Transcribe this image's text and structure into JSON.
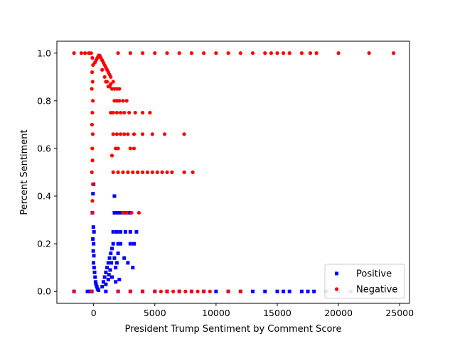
{
  "chart_data": {
    "type": "scatter",
    "title": "",
    "xlabel": "President Trump Sentiment by Comment Score",
    "ylabel": "Percent Sentiment",
    "xlim": [
      -3000,
      25800
    ],
    "ylim": [
      -0.05,
      1.05
    ],
    "x_ticks": [
      0,
      5000,
      10000,
      15000,
      20000,
      25000
    ],
    "x_tick_labels": [
      "0",
      "5000",
      "10000",
      "15000",
      "20000",
      "25000"
    ],
    "y_ticks": [
      0.0,
      0.2,
      0.4,
      0.6,
      0.8,
      1.0
    ],
    "y_tick_labels": [
      "0.0",
      "0.2",
      "0.4",
      "0.6",
      "0.8",
      "1.0"
    ],
    "grid": false,
    "legend": {
      "position": "lower-right",
      "entries": [
        "Positive",
        "Negative"
      ]
    },
    "colors": {
      "positive": "#0000ff",
      "negative": "#ff0000"
    },
    "series": [
      {
        "name": "Positive",
        "marker": "square",
        "color": "#0000ff",
        "points": [
          [
            -1600,
            0.0
          ],
          [
            -500,
            0.0
          ],
          [
            -300,
            0.0
          ],
          [
            -150,
            0.0
          ],
          [
            0,
            0.45
          ],
          [
            -50,
            0.41
          ],
          [
            -100,
            0.33
          ],
          [
            -20,
            0.27
          ],
          [
            30,
            0.25
          ],
          [
            -60,
            0.22
          ],
          [
            0,
            0.2
          ],
          [
            -30,
            0.17
          ],
          [
            20,
            0.15
          ],
          [
            -10,
            0.12
          ],
          [
            40,
            0.1
          ],
          [
            80,
            0.08
          ],
          [
            120,
            0.06
          ],
          [
            160,
            0.04
          ],
          [
            200,
            0.03
          ],
          [
            260,
            0.02
          ],
          [
            320,
            0.01
          ],
          [
            400,
            0.005
          ],
          [
            700,
            0.02
          ],
          [
            800,
            0.04
          ],
          [
            900,
            0.06
          ],
          [
            1000,
            0.08
          ],
          [
            1100,
            0.1
          ],
          [
            1200,
            0.12
          ],
          [
            1300,
            0.14
          ],
          [
            1400,
            0.16
          ],
          [
            1500,
            0.18
          ],
          [
            1600,
            0.2
          ],
          [
            1450,
            0.12
          ],
          [
            1350,
            0.09
          ],
          [
            1250,
            0.07
          ],
          [
            1700,
            0.14
          ],
          [
            1800,
            0.1
          ],
          [
            1900,
            0.12
          ],
          [
            2000,
            0.2
          ],
          [
            2200,
            0.2
          ],
          [
            1200,
            0.05
          ],
          [
            1500,
            0.06
          ],
          [
            1800,
            0.04
          ],
          [
            2100,
            0.05
          ],
          [
            1000,
            0.03
          ],
          [
            1700,
            0.4
          ],
          [
            1700,
            0.33
          ],
          [
            1900,
            0.33
          ],
          [
            2100,
            0.33
          ],
          [
            2300,
            0.33
          ],
          [
            2600,
            0.33
          ],
          [
            2900,
            0.33
          ],
          [
            1600,
            0.25
          ],
          [
            1900,
            0.25
          ],
          [
            2200,
            0.25
          ],
          [
            2600,
            0.25
          ],
          [
            3000,
            0.25
          ],
          [
            3500,
            0.25
          ],
          [
            3000,
            0.2
          ],
          [
            3300,
            0.2
          ],
          [
            2500,
            0.14
          ],
          [
            2800,
            0.12
          ],
          [
            3200,
            0.1
          ],
          [
            2000,
            0.16
          ],
          [
            1000,
            0.0
          ],
          [
            2000,
            0.0
          ],
          [
            3000,
            0.0
          ],
          [
            4000,
            0.0
          ],
          [
            5000,
            0.0
          ],
          [
            6000,
            0.0
          ],
          [
            7000,
            0.0
          ],
          [
            8000,
            0.0
          ],
          [
            9000,
            0.0
          ],
          [
            10000,
            0.0
          ],
          [
            11000,
            0.0
          ],
          [
            12000,
            0.0
          ],
          [
            13000,
            0.0
          ],
          [
            14000,
            0.0
          ],
          [
            15000,
            0.0
          ],
          [
            15500,
            0.0
          ],
          [
            16000,
            0.0
          ],
          [
            17000,
            0.0
          ],
          [
            17500,
            0.0
          ],
          [
            18000,
            0.0
          ],
          [
            19000,
            0.0
          ],
          [
            20000,
            0.0
          ],
          [
            21000,
            0.0
          ],
          [
            22000,
            0.0
          ],
          [
            24500,
            0.0
          ]
        ]
      },
      {
        "name": "Negative",
        "marker": "circle",
        "color": "#ff0000",
        "points": [
          [
            -1600,
            1.0
          ],
          [
            -1000,
            1.0
          ],
          [
            -700,
            1.0
          ],
          [
            -400,
            1.0
          ],
          [
            -200,
            1.0
          ],
          [
            -100,
            0.98
          ],
          [
            -50,
            0.95
          ],
          [
            -120,
            0.92
          ],
          [
            -80,
            0.88
          ],
          [
            -150,
            0.85
          ],
          [
            -60,
            0.8
          ],
          [
            -100,
            0.75
          ],
          [
            -130,
            0.7
          ],
          [
            -70,
            0.66
          ],
          [
            -110,
            0.6
          ],
          [
            -90,
            0.55
          ],
          [
            -140,
            0.5
          ],
          [
            -60,
            0.45
          ],
          [
            -100,
            0.38
          ],
          [
            -80,
            0.33
          ],
          [
            100,
            0.96
          ],
          [
            200,
            0.97
          ],
          [
            300,
            0.98
          ],
          [
            400,
            0.99
          ],
          [
            500,
            0.99
          ],
          [
            600,
            0.98
          ],
          [
            700,
            0.97
          ],
          [
            800,
            0.96
          ],
          [
            900,
            0.95
          ],
          [
            1000,
            0.94
          ],
          [
            1100,
            0.93
          ],
          [
            1200,
            0.92
          ],
          [
            1300,
            0.91
          ],
          [
            1400,
            0.9
          ],
          [
            700,
            0.93
          ],
          [
            900,
            0.9
          ],
          [
            1100,
            0.88
          ],
          [
            1300,
            0.86
          ],
          [
            1500,
            0.85
          ],
          [
            1700,
            0.85
          ],
          [
            1900,
            0.85
          ],
          [
            2100,
            0.85
          ],
          [
            1000,
            0.88
          ],
          [
            1200,
            0.86
          ],
          [
            1400,
            0.87
          ],
          [
            1600,
            0.88
          ],
          [
            1700,
            0.8
          ],
          [
            1900,
            0.8
          ],
          [
            2100,
            0.8
          ],
          [
            2400,
            0.8
          ],
          [
            2700,
            0.8
          ],
          [
            1400,
            0.75
          ],
          [
            1600,
            0.75
          ],
          [
            1900,
            0.75
          ],
          [
            2200,
            0.75
          ],
          [
            2500,
            0.75
          ],
          [
            2900,
            0.75
          ],
          [
            3400,
            0.75
          ],
          [
            4000,
            0.75
          ],
          [
            4600,
            0.75
          ],
          [
            1600,
            0.66
          ],
          [
            1900,
            0.66
          ],
          [
            2200,
            0.66
          ],
          [
            2500,
            0.66
          ],
          [
            2800,
            0.66
          ],
          [
            3300,
            0.66
          ],
          [
            4000,
            0.66
          ],
          [
            4800,
            0.66
          ],
          [
            5800,
            0.66
          ],
          [
            7400,
            0.66
          ],
          [
            1800,
            0.6
          ],
          [
            2000,
            0.6
          ],
          [
            3000,
            0.6
          ],
          [
            3300,
            0.6
          ],
          [
            1500,
            0.57
          ],
          [
            1600,
            0.5
          ],
          [
            2000,
            0.5
          ],
          [
            2400,
            0.5
          ],
          [
            2800,
            0.5
          ],
          [
            3200,
            0.5
          ],
          [
            3600,
            0.5
          ],
          [
            4000,
            0.5
          ],
          [
            4400,
            0.5
          ],
          [
            4800,
            0.5
          ],
          [
            5200,
            0.5
          ],
          [
            5600,
            0.5
          ],
          [
            6000,
            0.5
          ],
          [
            6400,
            0.5
          ],
          [
            7400,
            0.5
          ],
          [
            8100,
            0.5
          ],
          [
            2400,
            0.33
          ],
          [
            2700,
            0.33
          ],
          [
            3100,
            0.33
          ],
          [
            3700,
            0.33
          ],
          [
            2000,
            1.0
          ],
          [
            3000,
            1.0
          ],
          [
            4000,
            1.0
          ],
          [
            5000,
            1.0
          ],
          [
            6000,
            1.0
          ],
          [
            7000,
            1.0
          ],
          [
            8000,
            1.0
          ],
          [
            9000,
            1.0
          ],
          [
            10000,
            1.0
          ],
          [
            11000,
            1.0
          ],
          [
            12000,
            1.0
          ],
          [
            13000,
            1.0
          ],
          [
            14000,
            1.0
          ],
          [
            14500,
            1.0
          ],
          [
            15000,
            1.0
          ],
          [
            15500,
            1.0
          ],
          [
            16000,
            1.0
          ],
          [
            17000,
            1.0
          ],
          [
            17700,
            1.0
          ],
          [
            18200,
            1.0
          ],
          [
            20000,
            1.0
          ],
          [
            22500,
            1.0
          ],
          [
            24500,
            1.0
          ],
          [
            -1600,
            0.0
          ],
          [
            -200,
            0.0
          ],
          [
            2000,
            0.0
          ],
          [
            3000,
            0.0
          ],
          [
            4000,
            0.0
          ],
          [
            5000,
            0.0
          ],
          [
            5500,
            0.0
          ],
          [
            6000,
            0.0
          ],
          [
            6500,
            0.0
          ],
          [
            7000,
            0.0
          ],
          [
            7500,
            0.0
          ],
          [
            8000,
            0.0
          ],
          [
            8500,
            0.0
          ],
          [
            9000,
            0.0
          ],
          [
            9500,
            0.0
          ],
          [
            11000,
            0.0
          ],
          [
            12000,
            0.0
          ]
        ]
      }
    ]
  }
}
